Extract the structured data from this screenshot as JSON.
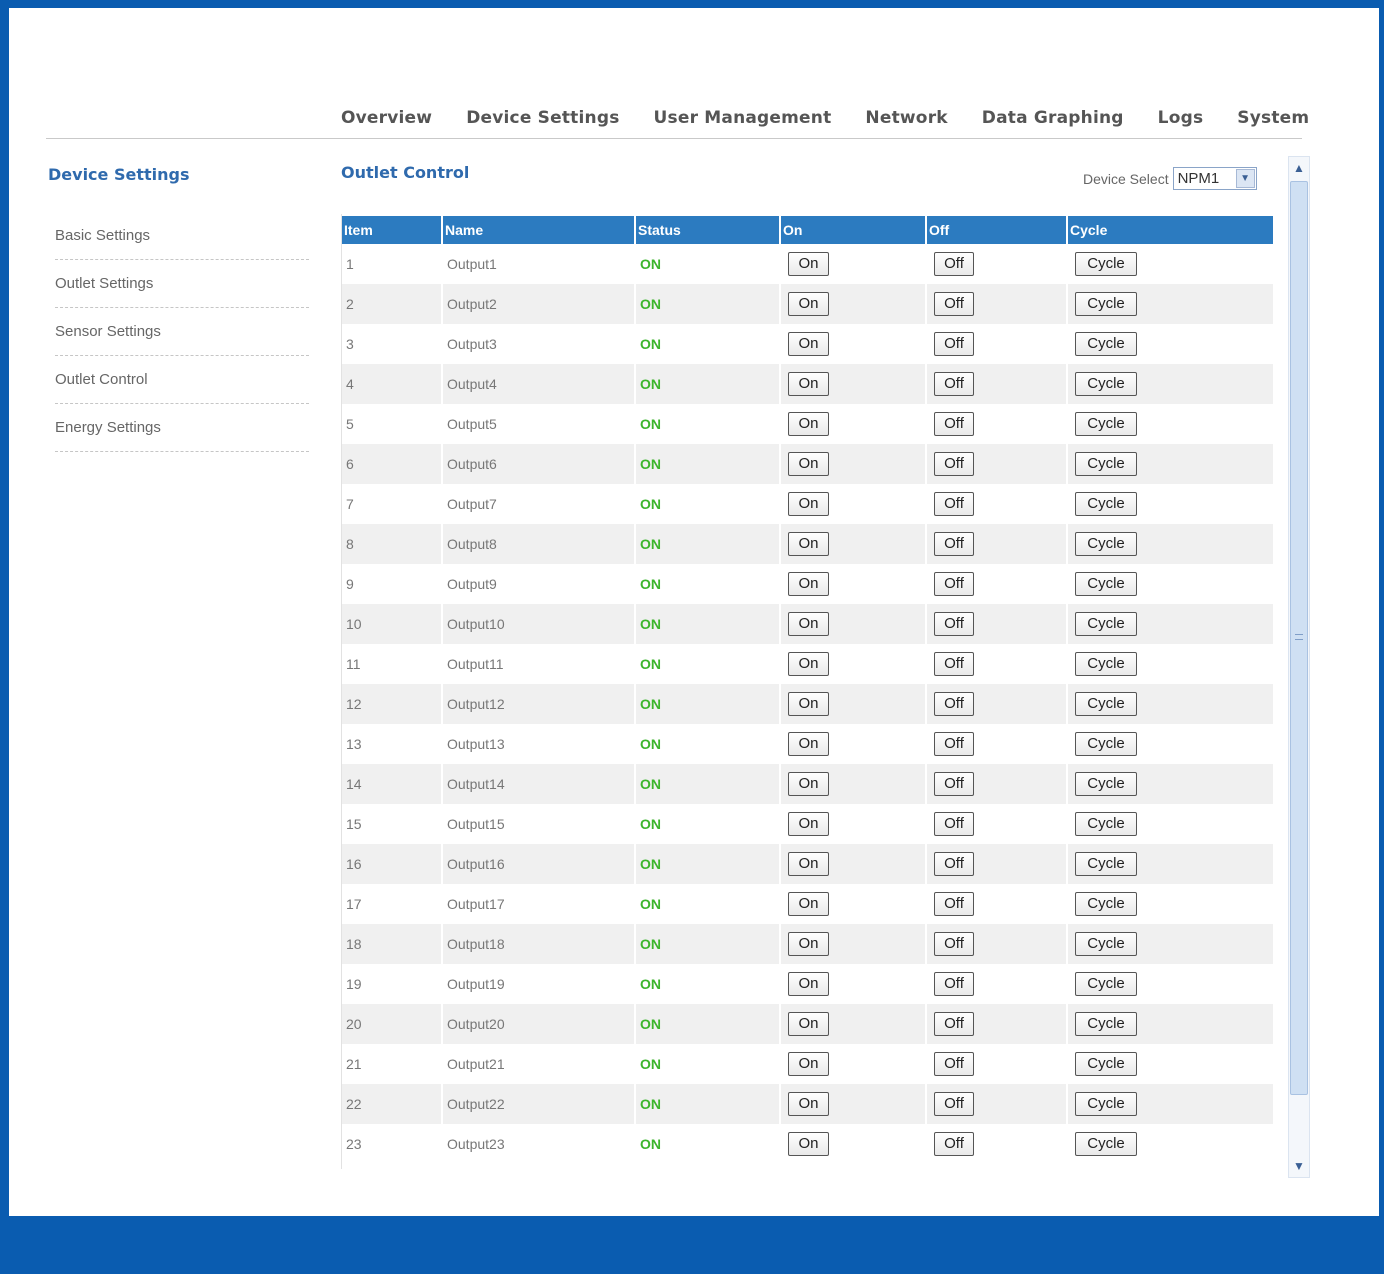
{
  "nav": [
    "Overview",
    "Device Settings",
    "User Management",
    "Network",
    "Data Graphing",
    "Logs",
    "System"
  ],
  "sidebar": {
    "title": "Device Settings",
    "items": [
      "Basic Settings",
      "Outlet Settings",
      "Sensor Settings",
      "Outlet Control",
      "Energy Settings"
    ]
  },
  "main": {
    "title": "Outlet Control",
    "device_select_label": "Device Select",
    "device_select_value": "NPM1"
  },
  "table": {
    "headers": [
      "Item",
      "Name",
      "Status",
      "On",
      "Off",
      "Cycle"
    ],
    "button_labels": {
      "on": "On",
      "off": "Off",
      "cycle": "Cycle"
    },
    "rows": [
      {
        "item": "1",
        "name": "Output1",
        "status": "ON"
      },
      {
        "item": "2",
        "name": "Output2",
        "status": "ON"
      },
      {
        "item": "3",
        "name": "Output3",
        "status": "ON"
      },
      {
        "item": "4",
        "name": "Output4",
        "status": "ON"
      },
      {
        "item": "5",
        "name": "Output5",
        "status": "ON"
      },
      {
        "item": "6",
        "name": "Output6",
        "status": "ON"
      },
      {
        "item": "7",
        "name": "Output7",
        "status": "ON"
      },
      {
        "item": "8",
        "name": "Output8",
        "status": "ON"
      },
      {
        "item": "9",
        "name": "Output9",
        "status": "ON"
      },
      {
        "item": "10",
        "name": "Output10",
        "status": "ON"
      },
      {
        "item": "11",
        "name": "Output11",
        "status": "ON"
      },
      {
        "item": "12",
        "name": "Output12",
        "status": "ON"
      },
      {
        "item": "13",
        "name": "Output13",
        "status": "ON"
      },
      {
        "item": "14",
        "name": "Output14",
        "status": "ON"
      },
      {
        "item": "15",
        "name": "Output15",
        "status": "ON"
      },
      {
        "item": "16",
        "name": "Output16",
        "status": "ON"
      },
      {
        "item": "17",
        "name": "Output17",
        "status": "ON"
      },
      {
        "item": "18",
        "name": "Output18",
        "status": "ON"
      },
      {
        "item": "19",
        "name": "Output19",
        "status": "ON"
      },
      {
        "item": "20",
        "name": "Output20",
        "status": "ON"
      },
      {
        "item": "21",
        "name": "Output21",
        "status": "ON"
      },
      {
        "item": "22",
        "name": "Output22",
        "status": "ON"
      },
      {
        "item": "23",
        "name": "Output23",
        "status": "ON"
      }
    ]
  },
  "colors": {
    "frame_blue": "#0a5cb0",
    "header_blue": "#2c7bc0",
    "title_blue": "#2f6aad",
    "status_green": "#3cb52c"
  },
  "icons": {
    "select_arrow": "chevron-down-icon",
    "scroll_up": "chevron-up-icon",
    "scroll_down": "chevron-down-icon"
  }
}
